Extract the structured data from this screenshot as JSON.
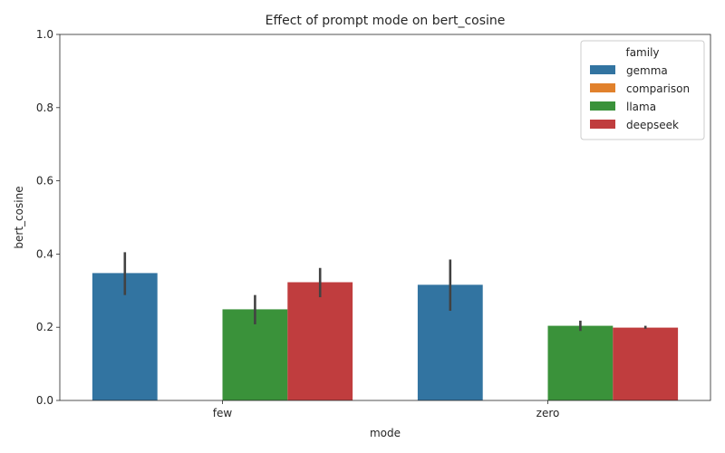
{
  "chart_data": {
    "type": "bar",
    "title": "Effect of prompt mode on bert_cosine",
    "xlabel": "mode",
    "ylabel": "bert_cosine",
    "ylim": [
      0,
      1
    ],
    "yticks": [
      "0.0",
      "0.2",
      "0.4",
      "0.6",
      "0.8",
      "1.0"
    ],
    "categories": [
      "few",
      "zero"
    ],
    "legend": {
      "title": "family",
      "placement": "top-right"
    },
    "series": [
      {
        "name": "gemma",
        "color": "#3274a1",
        "values": [
          0.348,
          0.316
        ],
        "ci": [
          [
            0.288,
            0.405
          ],
          [
            0.245,
            0.385
          ]
        ]
      },
      {
        "name": "comparison",
        "color": "#e1812c",
        "values": [
          null,
          null
        ],
        "ci": [
          null,
          null
        ]
      },
      {
        "name": "llama",
        "color": "#3a923a",
        "values": [
          0.249,
          0.204
        ],
        "ci": [
          [
            0.208,
            0.288
          ],
          [
            0.19,
            0.218
          ]
        ]
      },
      {
        "name": "deepseek",
        "color": "#c03d3e",
        "values": [
          0.323,
          0.199
        ],
        "ci": [
          [
            0.282,
            0.362
          ],
          [
            0.196,
            0.204
          ]
        ]
      }
    ]
  }
}
